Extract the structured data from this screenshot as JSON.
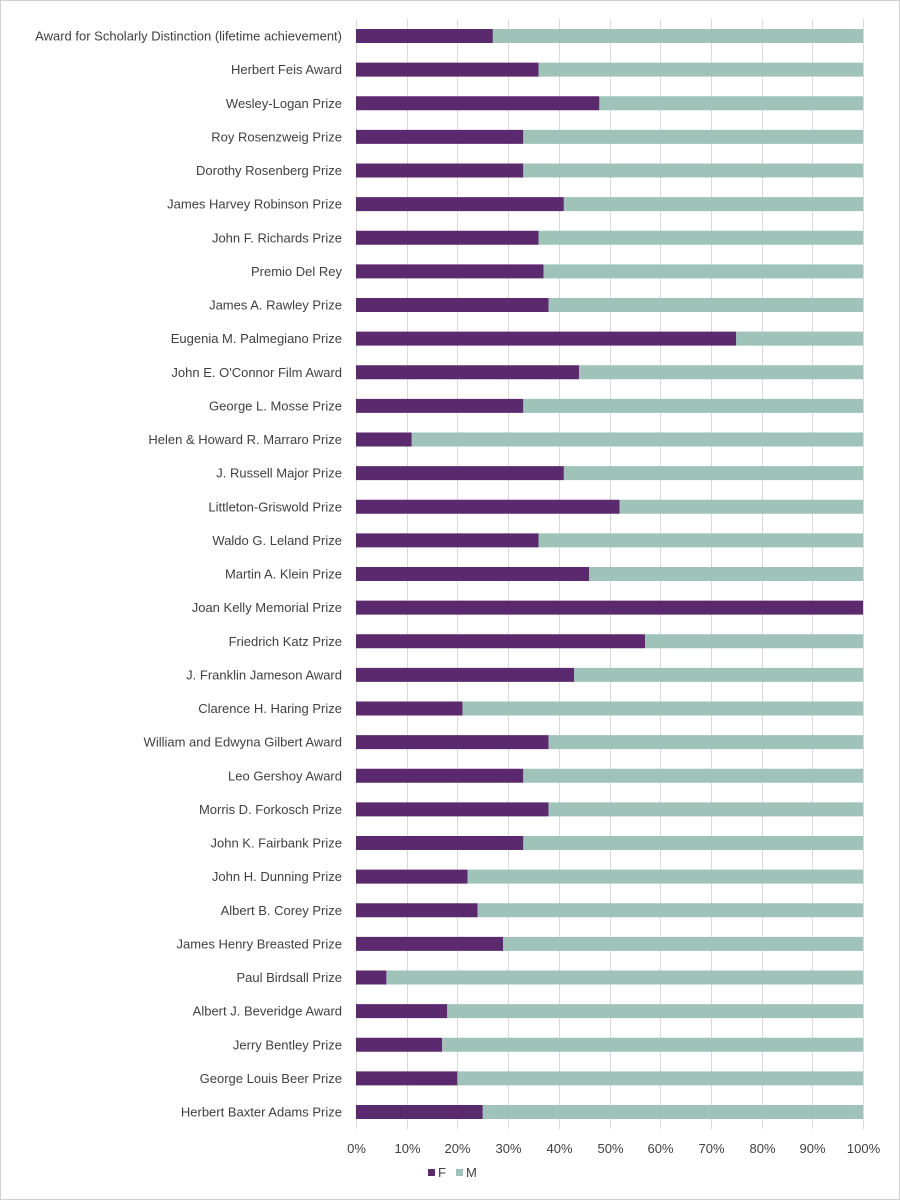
{
  "chart_data": {
    "type": "bar",
    "orientation": "horizontal",
    "stacking": "percent",
    "categories": [
      "Award for Scholarly Distinction (lifetime achievement)",
      "Herbert Feis Award",
      "Wesley-Logan Prize",
      "Roy Rosenzweig Prize",
      "Dorothy Rosenberg Prize",
      "James Harvey Robinson Prize",
      "John F. Richards Prize",
      "Premio Del Rey",
      "James A. Rawley Prize",
      "Eugenia M. Palmegiano Prize",
      "John E. O'Connor Film Award",
      "George L. Mosse Prize",
      "Helen & Howard R. Marraro Prize",
      "J. Russell Major Prize",
      "Littleton-Griswold Prize",
      "Waldo G. Leland Prize",
      "Martin A. Klein Prize",
      "Joan Kelly Memorial Prize",
      "Friedrich Katz Prize",
      "J. Franklin Jameson Award",
      "Clarence H. Haring Prize",
      "William and Edwyna Gilbert Award",
      "Leo Gershoy Award",
      "Morris D. Forkosch Prize",
      "John K. Fairbank Prize",
      "John H. Dunning Prize",
      "Albert B. Corey Prize",
      "James Henry Breasted Prize",
      "Paul Birdsall Prize",
      "Albert J. Beveridge Award",
      "Jerry Bentley Prize",
      "George Louis Beer Prize",
      "Herbert Baxter Adams Prize"
    ],
    "series": [
      {
        "name": "F",
        "color": "#5b2a6e",
        "values": [
          27,
          36,
          48,
          33,
          33,
          41,
          36,
          37,
          38,
          75,
          44,
          33,
          11,
          41,
          52,
          36,
          46,
          100,
          57,
          43,
          21,
          38,
          33,
          38,
          33,
          22,
          24,
          29,
          6,
          18,
          17,
          20,
          25
        ]
      },
      {
        "name": "M",
        "color": "#9fc3b9",
        "values": [
          73,
          64,
          52,
          67,
          67,
          59,
          64,
          63,
          62,
          25,
          56,
          67,
          89,
          59,
          48,
          64,
          54,
          0,
          43,
          57,
          79,
          62,
          67,
          62,
          67,
          78,
          76,
          71,
          94,
          82,
          83,
          80,
          75
        ]
      }
    ],
    "xlim": [
      0,
      100
    ],
    "xticks": [
      "0%",
      "10%",
      "20%",
      "30%",
      "40%",
      "50%",
      "60%",
      "70%",
      "80%",
      "90%",
      "100%"
    ],
    "grid": true,
    "legend": "bottom"
  }
}
